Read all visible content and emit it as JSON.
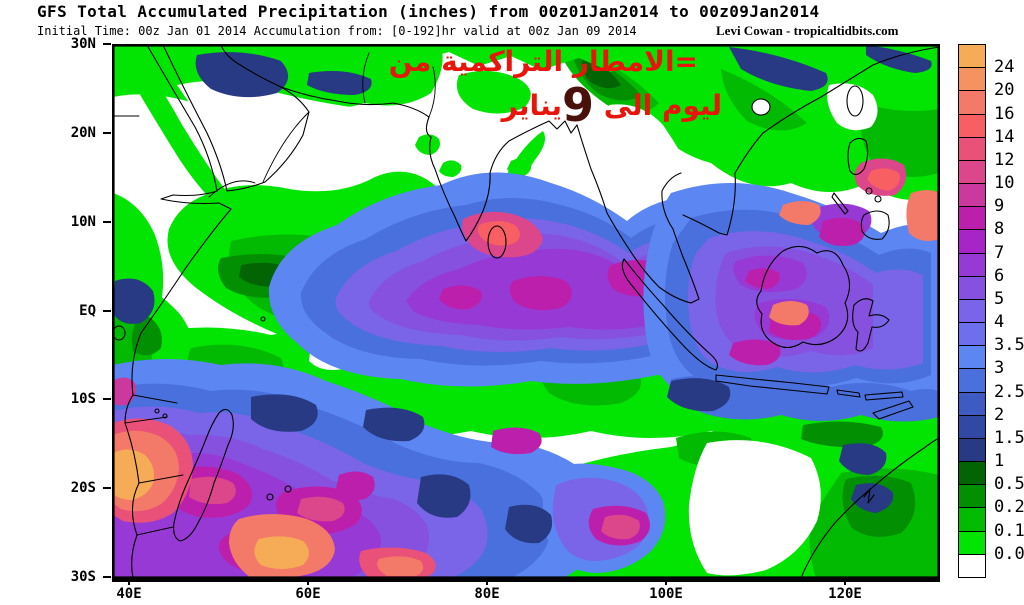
{
  "header": {
    "title": "GFS Total Accumulated Precipitation (inches) from 00z01Jan2014 to 00z09Jan2014",
    "subtitle": "Initial Time: 00z Jan 01 2014 Accumulation from: [0-192]hr valid at 00z Jan 09 2014",
    "credit": "Levi Cowan - tropicaltidbits.com"
  },
  "annotation": {
    "color": "#e8150a",
    "line1": "=الامطار التراكمية من",
    "line2_start": "ليوم الى ",
    "line2_number": "9",
    "line2_end": "يناير"
  },
  "axes": {
    "lat": [
      "30N",
      "20N",
      "10N",
      "EQ",
      "10S",
      "20S",
      "30S"
    ],
    "lon": [
      "40E",
      "60E",
      "80E",
      "100E",
      "120E"
    ],
    "lon_fracs": [
      0.0206,
      0.2373,
      0.454,
      0.6707,
      0.8874
    ]
  },
  "legend": {
    "units": "inches",
    "labels": [
      "24",
      "20",
      "16",
      "14",
      "12",
      "10",
      "9",
      "8",
      "7",
      "6",
      "5",
      "4",
      "3.5",
      "3",
      "2.5",
      "2",
      "1.5",
      "1",
      "0.5",
      "0.25",
      "0.1",
      "0.05"
    ],
    "colors": [
      "#f6ac56",
      "#f49360",
      "#f37a68",
      "#f75f63",
      "#ea5179",
      "#dc468b",
      "#cb389e",
      "#bc1fac",
      "#a724c6",
      "#9739d5",
      "#8751e0",
      "#7a64e8",
      "#6d70ec",
      "#5c86f2",
      "#4a70dd",
      "#3e5bc4",
      "#3248a5",
      "#273a83",
      "#026402",
      "#029002",
      "#02ba02",
      "#02e402",
      "#ffffff"
    ]
  }
}
